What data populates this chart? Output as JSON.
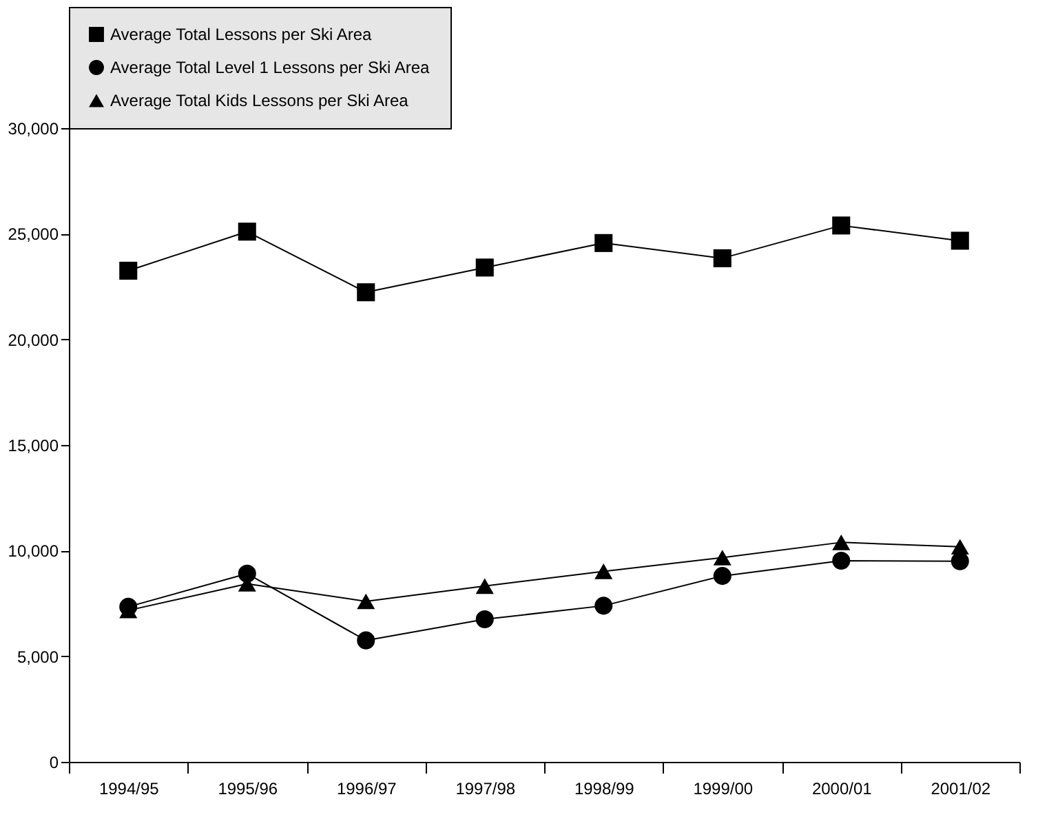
{
  "chart_data": {
    "type": "line",
    "categories": [
      "1994/95",
      "1995/96",
      "1996/97",
      "1997/98",
      "1998/99",
      "1999/00",
      "2000/01",
      "2001/02"
    ],
    "series": [
      {
        "name": "Average Total Lessons per Ski Area",
        "color": "#000000",
        "marker": "square",
        "values": [
          23250,
          25100,
          22230,
          23400,
          24560,
          23840,
          25390,
          24670
        ]
      },
      {
        "name": "Average Total Level 1 Lessons per Ski Area",
        "color": "#000000",
        "marker": "circle",
        "values": [
          7340,
          8910,
          5750,
          6750,
          7390,
          8800,
          9520,
          9500
        ]
      },
      {
        "name": "Average Total Kids Lessons per Ski Area",
        "color": "#000000",
        "marker": "triangle",
        "values": [
          7170,
          8430,
          7600,
          8320,
          9020,
          9670,
          10390,
          10180
        ]
      }
    ],
    "ylim": [
      0,
      30000
    ],
    "yticks": [
      {
        "value": 0,
        "label": "0"
      },
      {
        "value": 5000,
        "label": "5,000"
      },
      {
        "value": 10000,
        "label": "10,000"
      },
      {
        "value": 15000,
        "label": "15,000"
      },
      {
        "value": 20000,
        "label": "20,000"
      },
      {
        "value": 25000,
        "label": "25,000"
      },
      {
        "value": 30000,
        "label": "30,000"
      }
    ],
    "grid": false,
    "legend": "top",
    "line_style": "solid"
  }
}
